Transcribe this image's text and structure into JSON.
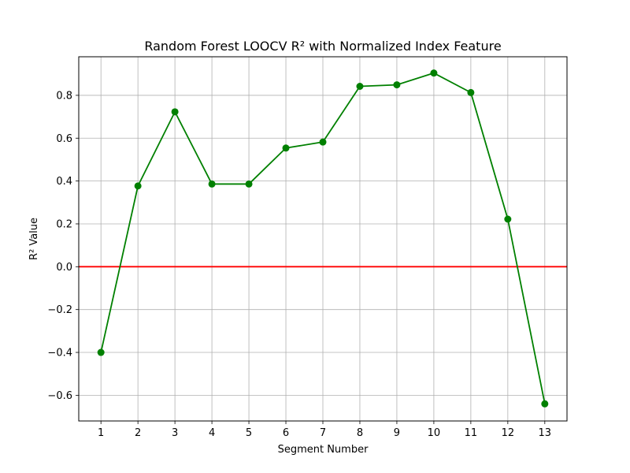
{
  "chart_data": {
    "type": "line",
    "title": "Random Forest LOOCV R² with Normalized Index Feature",
    "xlabel": "Segment Number",
    "ylabel": "R² Value",
    "x": [
      1,
      2,
      3,
      4,
      5,
      6,
      7,
      8,
      9,
      10,
      11,
      12,
      13
    ],
    "series": [
      {
        "color": "#008000",
        "marker": "circle",
        "values": [
          -0.4,
          0.377,
          0.723,
          0.386,
          0.386,
          0.554,
          0.582,
          0.842,
          0.849,
          0.904,
          0.813,
          0.222,
          -0.64
        ]
      }
    ],
    "reference_line": {
      "y": 0.0,
      "color": "#ff0000"
    },
    "xlim": [
      0.4,
      13.6
    ],
    "ylim": [
      -0.72,
      0.98
    ],
    "xticks": [
      "1",
      "2",
      "3",
      "4",
      "5",
      "6",
      "7",
      "8",
      "9",
      "10",
      "11",
      "12",
      "13"
    ],
    "yticks": [
      -0.6,
      -0.4,
      -0.2,
      0.0,
      0.2,
      0.4,
      0.6,
      0.8
    ],
    "ytick_labels": [
      "−0.6",
      "−0.4",
      "−0.2",
      "0.0",
      "0.2",
      "0.4",
      "0.6",
      "0.8"
    ],
    "grid": true,
    "legend": "none"
  }
}
